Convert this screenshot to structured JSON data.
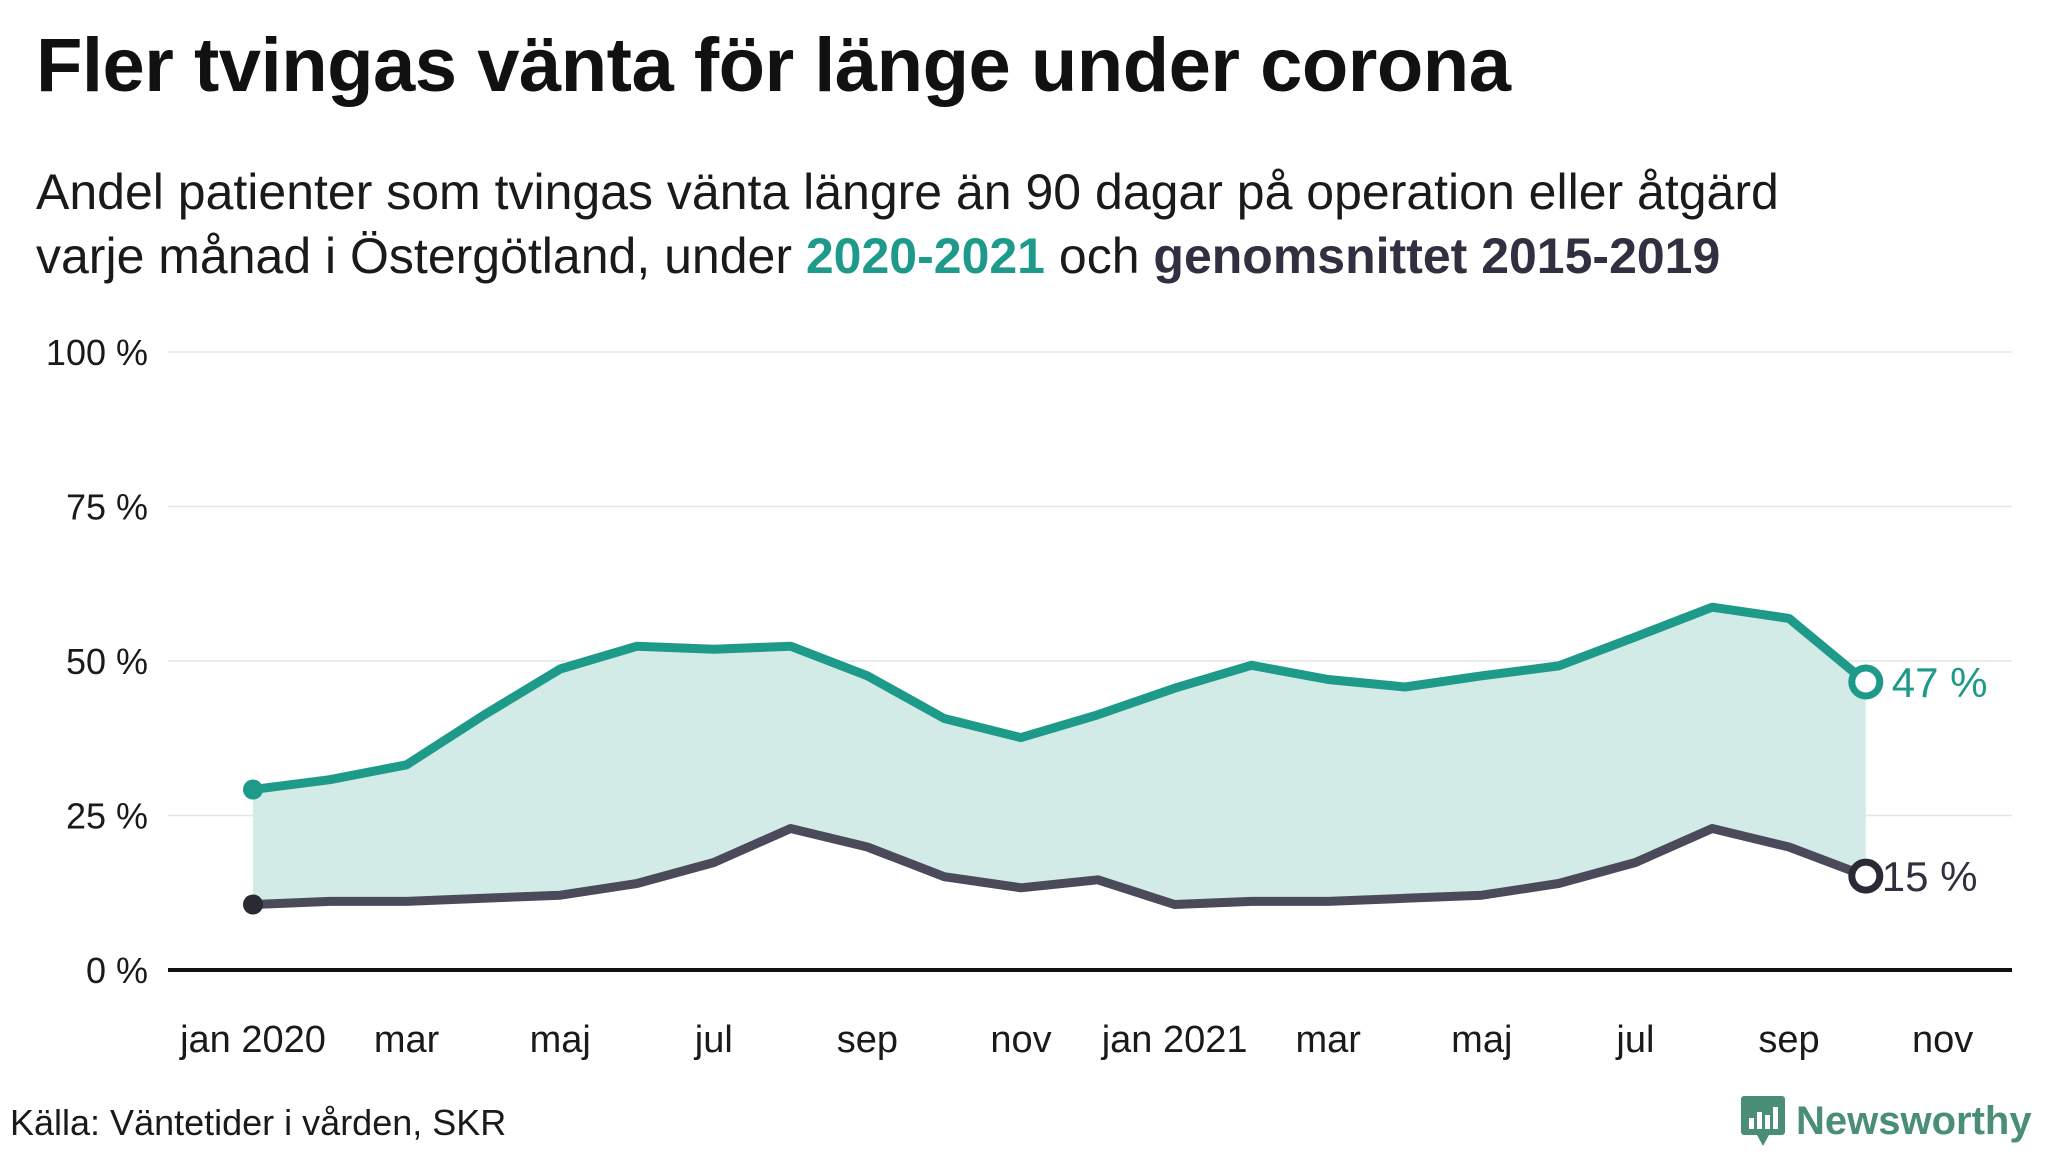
{
  "title": "Fler tvingas vänta för länge under corona",
  "subtitle": {
    "line1": "Andel patienter som tvingas vänta längre än 90 dagar på operation eller åtgärd",
    "line2_prefix": "varje månad i Östergötland, under ",
    "line2_series1": "2020-2021",
    "line2_mid": " och ",
    "line2_series2": "genomsnittet 2015-2019"
  },
  "source": "Källa: Väntetider i vården, SKR",
  "logo": {
    "text": "Newsworthy",
    "icon": "newsworthy-logo-icon",
    "color": "#4a8e78"
  },
  "colors": {
    "series_2020_2021": "#1e9a8a",
    "series_avg": "#4a4a5a",
    "fill": "#d2ebe6",
    "grid": "#e6e6e6",
    "axis": "#111111"
  },
  "chart_data": {
    "type": "line",
    "x_start": "2020-01",
    "ylim": [
      0,
      100
    ],
    "y_ticks": [
      0,
      25,
      50,
      75,
      100
    ],
    "y_tick_labels": [
      "0 %",
      "25 %",
      "50 %",
      "75 %",
      "100 %"
    ],
    "x_ticks": [
      {
        "month": 0,
        "label": "jan 2020"
      },
      {
        "month": 2,
        "label": "mar"
      },
      {
        "month": 4,
        "label": "maj"
      },
      {
        "month": 6,
        "label": "jul"
      },
      {
        "month": 8,
        "label": "sep"
      },
      {
        "month": 10,
        "label": "nov"
      },
      {
        "month": 12,
        "label": "jan 2021"
      },
      {
        "month": 14,
        "label": "mar"
      },
      {
        "month": 16,
        "label": "maj"
      },
      {
        "month": 18,
        "label": "jul"
      },
      {
        "month": 20,
        "label": "sep"
      },
      {
        "month": 22,
        "label": "nov"
      }
    ],
    "x_months": [
      0,
      1,
      2,
      3,
      4,
      5,
      6,
      7,
      8,
      9,
      10,
      11,
      12,
      13,
      14,
      15,
      16,
      17,
      18,
      19,
      20,
      21
    ],
    "series": [
      {
        "name": "2020-2021",
        "values": [
          29.2,
          30.8,
          33.2,
          41.2,
          48.7,
          52.4,
          51.9,
          52.4,
          47.6,
          40.7,
          37.6,
          41.3,
          45.6,
          49.3,
          47.0,
          45.8,
          47.6,
          49.2,
          53.9,
          58.7,
          56.9,
          46.6
        ],
        "end_label": "47 %"
      },
      {
        "name": "genomsnittet 2015-2019",
        "values": [
          10.6,
          11.1,
          11.1,
          11.6,
          12.1,
          14.0,
          17.4,
          22.9,
          19.9,
          15.1,
          13.3,
          14.6,
          10.6,
          11.1,
          11.1,
          11.6,
          12.1,
          14.0,
          17.4,
          22.9,
          19.9,
          15.2
        ],
        "end_label": "15 %"
      }
    ]
  }
}
